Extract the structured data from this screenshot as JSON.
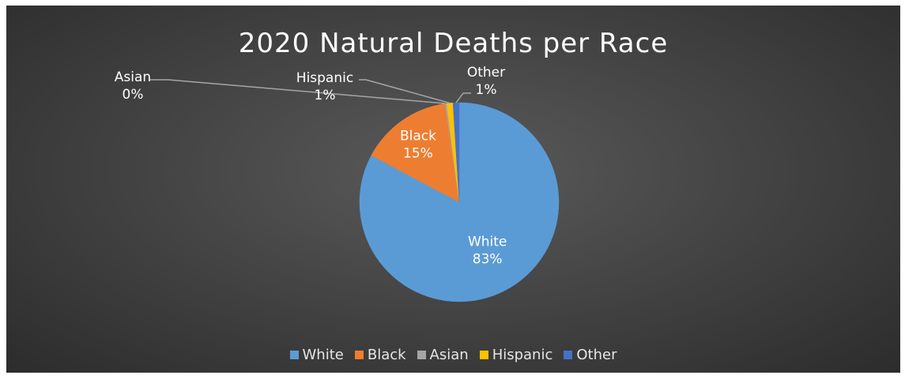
{
  "chart_data": {
    "type": "pie",
    "title": "2020 Natural Deaths per Race",
    "categories": [
      "White",
      "Black",
      "Asian",
      "Hispanic",
      "Other"
    ],
    "values": [
      83,
      15,
      0,
      1,
      1
    ],
    "value_labels": [
      "83%",
      "15%",
      "0%",
      "1%",
      "1%"
    ],
    "colors": [
      "#5b9bd5",
      "#ed7d31",
      "#a5a5a5",
      "#ffc000",
      "#4472c4"
    ],
    "legend_position": "bottom",
    "background": "#404040"
  }
}
